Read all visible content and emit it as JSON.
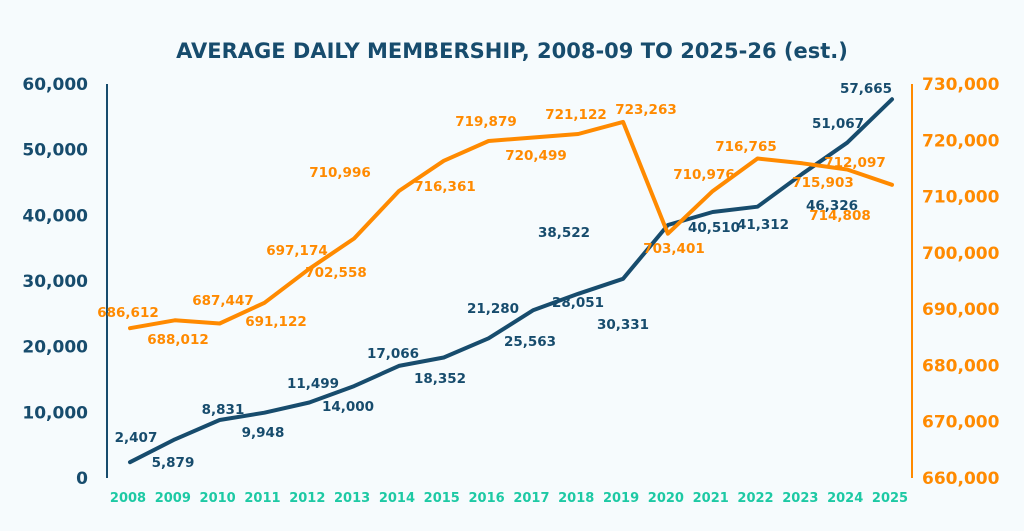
{
  "chart_data": {
    "type": "line",
    "title": "AVERAGE DAILY MEMBERSHIP, 2008-09 TO 2025-26 (est.)",
    "categories": [
      "2008",
      "2009",
      "2010",
      "2011",
      "2012",
      "2013",
      "2014",
      "2015",
      "2016",
      "2017",
      "2018",
      "2019",
      "2020",
      "2021",
      "2022",
      "2023",
      "2024",
      "2025"
    ],
    "left_axis": {
      "ylim": [
        0,
        60000
      ],
      "ticks": [
        "0",
        "10,000",
        "20,000",
        "30,000",
        "40,000",
        "50,000",
        "60,000"
      ],
      "color": "#174c6d"
    },
    "right_axis": {
      "ylim": [
        660000,
        730000
      ],
      "ticks": [
        "660,000",
        "670,000",
        "680,000",
        "690,000",
        "700,000",
        "710,000",
        "720,000",
        "730,000"
      ],
      "color": "#ff8a00"
    },
    "grid": false,
    "series": [
      {
        "axis": "left",
        "color": "#174c6d",
        "values": [
          2407,
          5879,
          8831,
          9948,
          11499,
          14000,
          17066,
          18352,
          21280,
          25563,
          28051,
          30331,
          38522,
          40510,
          41312,
          46326,
          51067,
          57665
        ],
        "labels": [
          "2,407",
          "5,879",
          "8,831",
          "9,948",
          "11,499",
          "14,000",
          "17,066",
          "18,352",
          "21,280",
          "25,563",
          "28,051",
          "30,331",
          "38,522",
          "40,510",
          "41,312",
          "46,326",
          "51,067",
          "57,665"
        ]
      },
      {
        "axis": "right",
        "color": "#ff8a00",
        "values": [
          686612,
          688012,
          687447,
          691122,
          697174,
          702558,
          710996,
          716361,
          719879,
          720499,
          721122,
          723263,
          703401,
          710976,
          716765,
          715903,
          714808,
          712097
        ],
        "labels": [
          "686,612",
          "688,012",
          "687,447",
          "691,122",
          "697,174",
          "702,558",
          "710,996",
          "716,361",
          "719,879",
          "720,499",
          "721,122",
          "723,263",
          "703,401",
          "710,976",
          "716,765",
          "715,903",
          "714,808",
          "712,097"
        ]
      }
    ]
  }
}
